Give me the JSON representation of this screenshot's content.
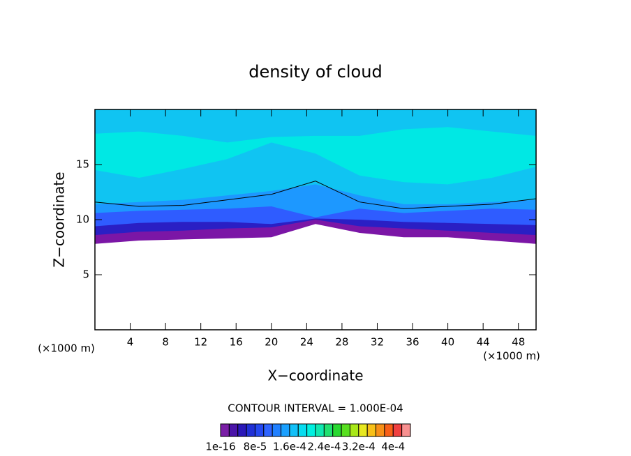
{
  "chart_data": {
    "type": "contour",
    "title": "density of cloud",
    "xlabel": "X−coordinate",
    "ylabel": "Z−coordinate",
    "x_unit": "(×1000 m)",
    "contour_info": "CONTOUR INTERVAL = 1.000E-04",
    "xlim": [
      0,
      50
    ],
    "ylim": [
      0,
      20
    ],
    "xticks": [
      4,
      8,
      12,
      16,
      20,
      24,
      28,
      32,
      36,
      40,
      44,
      48
    ],
    "yticks": [
      5,
      10,
      15
    ],
    "x": [
      0,
      5,
      10,
      15,
      20,
      25,
      30,
      35,
      40,
      45,
      50
    ],
    "layers": [
      {
        "color": "#7b16a6",
        "bottom": [
          7.8,
          8.1,
          8.2,
          8.3,
          8.4,
          9.6,
          8.8,
          8.4,
          8.4,
          8.1,
          7.8
        ],
        "top": [
          20,
          20,
          20,
          20,
          20,
          20,
          20,
          20,
          20,
          20,
          20
        ]
      },
      {
        "color": "#2a1fc4",
        "bottom": [
          8.6,
          8.9,
          9.0,
          9.2,
          9.3,
          10.0,
          9.4,
          9.2,
          9.0,
          8.8,
          8.6
        ],
        "top": [
          20,
          20,
          20,
          20,
          20,
          20,
          20,
          20,
          20,
          20,
          20
        ]
      },
      {
        "color": "#2f5cff",
        "bottom": [
          9.4,
          9.7,
          9.8,
          9.8,
          9.6,
          10.1,
          10.0,
          9.8,
          9.7,
          9.6,
          9.5
        ],
        "top": [
          20,
          20,
          20,
          20,
          20,
          20,
          20,
          20,
          20,
          20,
          20
        ]
      },
      {
        "color": "#1d98ff",
        "bottom": [
          10.6,
          10.8,
          10.9,
          11.0,
          11.2,
          10.2,
          11.0,
          10.6,
          10.8,
          11.0,
          10.9
        ],
        "top": [
          20,
          20,
          20,
          20,
          20,
          20,
          20,
          20,
          20,
          20,
          20
        ]
      },
      {
        "color": "#10c4f2",
        "bottom": [
          11.4,
          11.6,
          11.8,
          12.2,
          12.6,
          13.2,
          12.2,
          11.4,
          11.4,
          11.6,
          11.8
        ],
        "top": [
          20,
          20,
          20,
          20,
          20,
          20,
          20,
          20,
          20,
          20,
          20
        ]
      },
      {
        "color": "#00e8e4",
        "bottom": [
          14.5,
          13.8,
          14.6,
          15.5,
          17.0,
          16.0,
          14.0,
          13.4,
          13.2,
          13.8,
          14.8
        ],
        "top": [
          17.8,
          18.0,
          17.6,
          17.0,
          17.5,
          17.6,
          17.6,
          18.2,
          18.4,
          18.0,
          17.6
        ]
      }
    ],
    "contour_line": [
      11.6,
      11.2,
      11.3,
      11.8,
      12.3,
      13.5,
      11.6,
      11.0,
      11.2,
      11.4,
      11.9
    ],
    "colorbar": {
      "colors": [
        "#7a1ea6",
        "#4a14a8",
        "#2a18b8",
        "#2030d6",
        "#2448f0",
        "#2e64ff",
        "#2080ff",
        "#1aa0ff",
        "#12c0f8",
        "#06dcf0",
        "#00f0e0",
        "#10e8b0",
        "#20e070",
        "#28d830",
        "#58e020",
        "#a8e818",
        "#e8e820",
        "#f8c018",
        "#f89018",
        "#f86018",
        "#f04040",
        "#f89090"
      ],
      "ticks": [
        {
          "value": 1e-16,
          "label": "1e-16"
        },
        {
          "value": 8e-05,
          "label": "8e-5"
        },
        {
          "value": 0.00016,
          "label": "1.6e-4"
        },
        {
          "value": 0.00024,
          "label": "2.4e-4"
        },
        {
          "value": 0.00032,
          "label": "3.2e-4"
        },
        {
          "value": 0.0004,
          "label": "4e-4"
        }
      ]
    }
  }
}
